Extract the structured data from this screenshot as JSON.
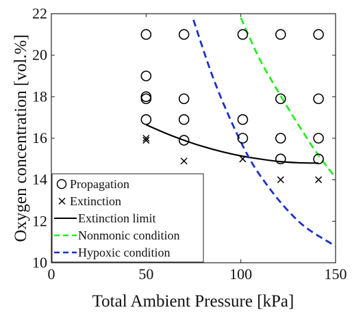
{
  "chart_data": {
    "type": "scatter",
    "xlabel": "Total Ambient Pressure [kPa]",
    "ylabel": "Oxygen concentration [vol.%]",
    "xlim": [
      0,
      150
    ],
    "ylim": [
      10,
      22
    ],
    "xticks": [
      0,
      50,
      100,
      150
    ],
    "yticks": [
      10,
      12,
      14,
      16,
      18,
      20,
      22
    ],
    "grid": false,
    "legend_position": "bottom-left",
    "series": [
      {
        "name": "Propagation",
        "kind": "markers",
        "marker": "circle",
        "color": "#000000",
        "points": [
          [
            50,
            21.0
          ],
          [
            50,
            19.0
          ],
          [
            50,
            18.0
          ],
          [
            50,
            17.9
          ],
          [
            50,
            16.9
          ],
          [
            70,
            21.0
          ],
          [
            70,
            17.9
          ],
          [
            70,
            16.9
          ],
          [
            70,
            15.9
          ],
          [
            101,
            21.0
          ],
          [
            101,
            16.9
          ],
          [
            101,
            16.0
          ],
          [
            121,
            21.0
          ],
          [
            121,
            17.9
          ],
          [
            121,
            16.0
          ],
          [
            121,
            15.0
          ],
          [
            141,
            21.0
          ],
          [
            141,
            17.9
          ],
          [
            141,
            16.0
          ],
          [
            141,
            15.0
          ]
        ]
      },
      {
        "name": "Extinction",
        "kind": "markers",
        "marker": "x",
        "color": "#000000",
        "points": [
          [
            50,
            16.0
          ],
          [
            50,
            15.9
          ],
          [
            70,
            14.9
          ],
          [
            101,
            15.0
          ],
          [
            121,
            14.0
          ],
          [
            141,
            14.0
          ]
        ]
      },
      {
        "name": "Extinction limit",
        "kind": "line",
        "style": "solid",
        "color": "#000000",
        "points": [
          [
            50,
            16.65
          ],
          [
            60,
            16.25
          ],
          [
            70,
            15.9
          ],
          [
            80,
            15.6
          ],
          [
            90,
            15.35
          ],
          [
            100,
            15.15
          ],
          [
            110,
            15.0
          ],
          [
            120,
            14.88
          ],
          [
            130,
            14.82
          ],
          [
            141,
            14.8
          ]
        ]
      },
      {
        "name": "Nonmonic condition",
        "kind": "line",
        "style": "dashed",
        "color": "#22ee22",
        "points": [
          [
            100,
            21.8
          ],
          [
            110,
            19.8
          ],
          [
            120,
            18.2
          ],
          [
            130,
            16.7
          ],
          [
            140,
            15.3
          ],
          [
            150,
            14.1
          ]
        ]
      },
      {
        "name": "Hypoxic condition",
        "kind": "line",
        "style": "dashed",
        "color": "#1a2fcc",
        "points": [
          [
            75,
            21.7
          ],
          [
            85,
            19.0
          ],
          [
            95,
            16.8
          ],
          [
            105,
            14.95
          ],
          [
            115,
            13.6
          ],
          [
            125,
            12.5
          ],
          [
            135,
            11.65
          ],
          [
            150,
            10.8
          ]
        ]
      }
    ]
  }
}
